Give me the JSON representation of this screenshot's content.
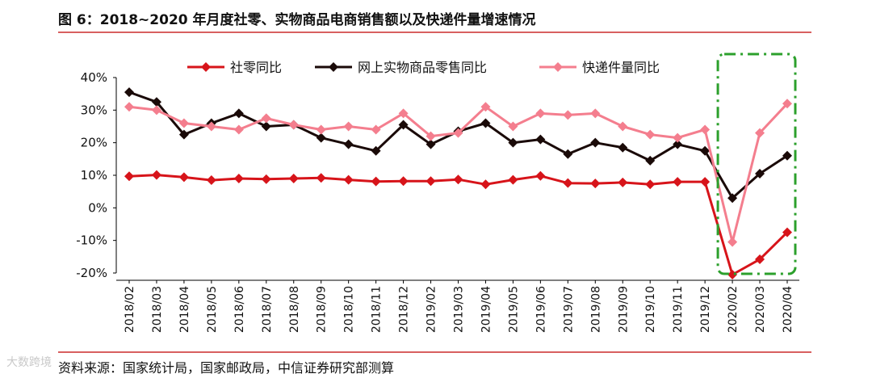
{
  "header": {
    "title": "图 6：2018~2020 年月度社零、实物商品电商销售额以及快递件量增速情况"
  },
  "footer": {
    "source": "资料来源：国家统计局，国家邮政局，中信证券研究部测算",
    "watermark": "大数跨境"
  },
  "colors": {
    "rule": "#c00000",
    "highlight_box": "#2ca02c"
  },
  "chart_data": {
    "type": "line",
    "categories": [
      "2018/02",
      "2018/03",
      "2018/04",
      "2018/05",
      "2018/06",
      "2018/07",
      "2018/08",
      "2018/09",
      "2018/10",
      "2018/11",
      "2018/12",
      "2019/02",
      "2019/03",
      "2019/04",
      "2019/05",
      "2019/06",
      "2019/07",
      "2019/08",
      "2019/09",
      "2019/10",
      "2019/11",
      "2019/12",
      "2020/02",
      "2020/03",
      "2020/04"
    ],
    "series": [
      {
        "name": "社零同比",
        "color": "#d7141a",
        "values": [
          9.7,
          10.1,
          9.4,
          8.5,
          9.0,
          8.8,
          9.0,
          9.2,
          8.6,
          8.1,
          8.2,
          8.2,
          8.7,
          7.2,
          8.6,
          9.8,
          7.6,
          7.5,
          7.8,
          7.2,
          8.0,
          8.0,
          -20.5,
          -15.8,
          -7.5
        ]
      },
      {
        "name": "网上实物商品零售同比",
        "color": "#1a0a08",
        "values": [
          35.5,
          32.5,
          22.5,
          26.0,
          29.0,
          25.0,
          25.5,
          21.5,
          19.5,
          17.5,
          25.5,
          19.5,
          23.5,
          26.0,
          20.0,
          21.0,
          16.5,
          20.0,
          18.5,
          14.5,
          19.5,
          17.5,
          3.0,
          10.5,
          16.0
        ]
      },
      {
        "name": "快递件量同比",
        "color": "#f47e8e",
        "values": [
          31.0,
          30.0,
          26.0,
          25.0,
          24.0,
          27.5,
          25.5,
          24.0,
          25.0,
          24.0,
          29.0,
          22.0,
          23.0,
          31.0,
          25.0,
          29.0,
          28.5,
          29.0,
          25.0,
          22.5,
          21.5,
          24.0,
          -10.5,
          23.0,
          32.0
        ]
      }
    ],
    "ylim": [
      -20,
      40
    ],
    "yticks": [
      "-20%",
      "-10%",
      "0%",
      "10%",
      "20%",
      "30%",
      "40%"
    ],
    "ytick_values": [
      -20,
      -10,
      0,
      10,
      20,
      30,
      40
    ],
    "legend": "top",
    "grid": false,
    "highlight": {
      "from": "2020/02",
      "to": "2020/04",
      "style": "dash-dot"
    }
  }
}
